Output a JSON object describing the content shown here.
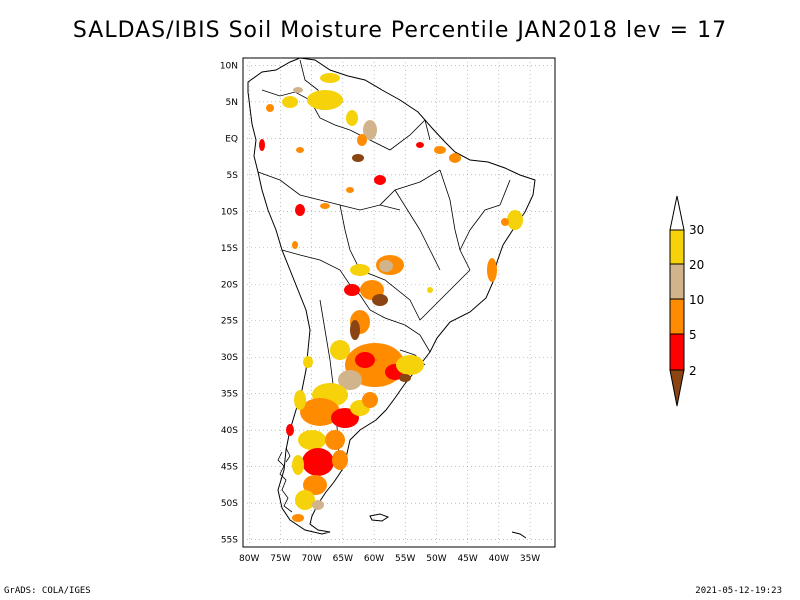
{
  "title": "SALDAS/IBIS Soil Moisture Percentile JAN2018 lev = 17",
  "footer": {
    "left": "GrADS: COLA/IGES",
    "right": "2021-05-12-19:23"
  },
  "map": {
    "lon_range": [
      -81,
      -31
    ],
    "lat_range": [
      -56,
      11
    ],
    "lon_ticks": [
      "80W",
      "75W",
      "70W",
      "65W",
      "60W",
      "55W",
      "50W",
      "45W",
      "40W",
      "35W"
    ],
    "lat_ticks": [
      "10N",
      "5N",
      "EQ",
      "5S",
      "10S",
      "15S",
      "20S",
      "25S",
      "30S",
      "35S",
      "40S",
      "45S",
      "50S",
      "55S"
    ],
    "grid": true
  },
  "legend": {
    "labels": [
      "30",
      "20",
      "10",
      "5",
      "2"
    ],
    "colors": [
      "#ffffff",
      "#f5d20a",
      "#d2b48c",
      "#ff8c00",
      "#ff0000",
      "#8b4513"
    ]
  }
}
